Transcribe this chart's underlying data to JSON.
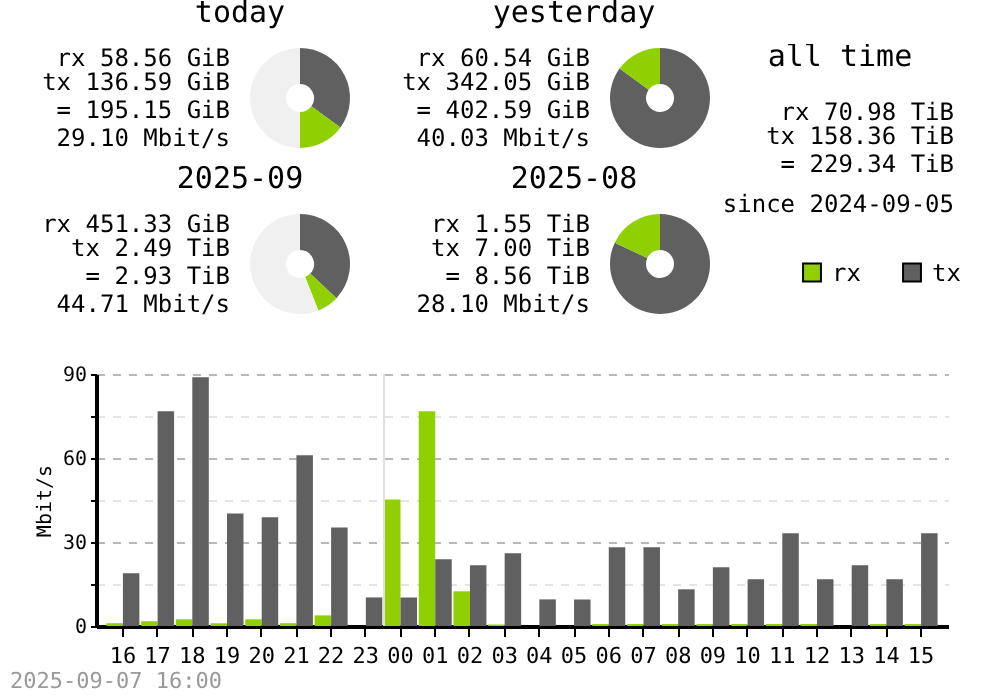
{
  "chart_data": [
    {
      "type": "donut",
      "title": "today",
      "categories": [
        null,
        null,
        null
      ],
      "values": [
        35,
        15,
        50
      ],
      "colors": [
        "#606060",
        "#90d000",
        "#f0f0f0"
      ],
      "annotations": [
        "rx 58.56 GiB",
        "tx 136.59 GiB",
        "= 195.15 GiB",
        "29.10 Mbit/s"
      ]
    },
    {
      "type": "donut",
      "title": "yesterday",
      "categories": [
        null,
        null
      ],
      "values": [
        85,
        15
      ],
      "colors": [
        "#606060",
        "#90d000"
      ],
      "annotations": [
        "rx 60.54 GiB",
        "tx 342.05 GiB",
        "= 402.59 GiB",
        "40.03 Mbit/s"
      ]
    },
    {
      "type": "other",
      "title": "all time",
      "annotations": [
        "rx 70.98 TiB",
        "tx 158.36 TiB",
        "= 229.34 TiB",
        "since 2024-09-05"
      ]
    },
    {
      "type": "donut",
      "title": "2025-09",
      "categories": [
        null,
        null,
        null
      ],
      "values": [
        37,
        7,
        56
      ],
      "colors": [
        "#606060",
        "#90d000",
        "#f0f0f0"
      ],
      "annotations": [
        "rx 451.33 GiB",
        "tx 2.49 TiB",
        "= 2.93 TiB",
        "44.71 Mbit/s"
      ]
    },
    {
      "type": "donut",
      "title": "2025-08",
      "categories": [
        null,
        null
      ],
      "values": [
        82,
        18
      ],
      "colors": [
        "#606060",
        "#90d000"
      ],
      "annotations": [
        "rx 1.55 TiB",
        "tx 7.00 TiB",
        "= 8.56 TiB",
        "28.10 Mbit/s"
      ]
    },
    {
      "type": "bar",
      "ylabel": "Mbit/s",
      "categories": [
        "16",
        "17",
        "18",
        "19",
        "20",
        "21",
        "22",
        "23",
        "00",
        "01",
        "02",
        "03",
        "04",
        "05",
        "06",
        "07",
        "08",
        "09",
        "10",
        "11",
        "12",
        "13",
        "14",
        "15"
      ],
      "series": [
        {
          "name": "rx",
          "color": "#90d000",
          "values": [
            1,
            1.7,
            2.4,
            1,
            2.4,
            1,
            3.8,
            0,
            45.2,
            76.7,
            12.4,
            0.5,
            0,
            0,
            0.7,
            0.7,
            0.7,
            0.7,
            0.7,
            0.7,
            0.7,
            0,
            0.7,
            0.7
          ]
        },
        {
          "name": "tx",
          "color": "#606060",
          "values": [
            18.8,
            76.7,
            88.8,
            40.2,
            38.8,
            61,
            35.2,
            10.2,
            10.2,
            23.8,
            21.7,
            26,
            9.5,
            9.5,
            28.1,
            28.1,
            13.1,
            21,
            16.7,
            33.1,
            16.7,
            21.7,
            16.7,
            33.1
          ]
        }
      ],
      "ylim": [
        0,
        90
      ],
      "yticks": [
        0,
        {
          "value": 15,
          "label": null
        },
        30,
        {
          "value": 45,
          "label": null
        },
        60,
        {
          "value": 75,
          "label": null
        },
        90
      ],
      "grid": "y",
      "legend": "top right",
      "ref_lines": [
        {
          "axis": "x",
          "value": "00",
          "color": "#e0e0e0"
        }
      ],
      "annotations": [
        "2025-09-07 16:00"
      ]
    }
  ]
}
